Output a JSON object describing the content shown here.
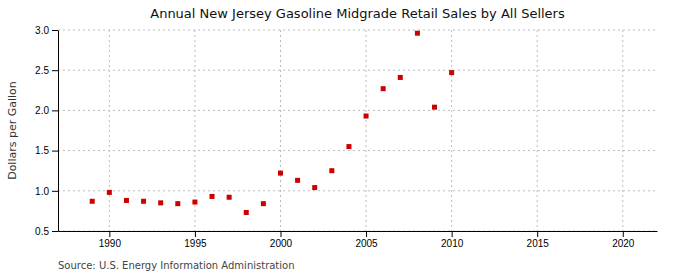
{
  "chart_data": {
    "type": "scatter",
    "title": "Annual New Jersey Gasoline Midgrade Retail Sales by All Sellers",
    "ylabel": "Dollars per Gallon",
    "source": "Source: U.S. Energy Information Administration",
    "x": [
      1989,
      1990,
      1991,
      1992,
      1993,
      1994,
      1995,
      1996,
      1997,
      1998,
      1999,
      2000,
      2001,
      2002,
      2003,
      2004,
      2005,
      2006,
      2007,
      2008,
      2009,
      2010
    ],
    "values": [
      0.87,
      0.98,
      0.88,
      0.87,
      0.85,
      0.84,
      0.86,
      0.93,
      0.92,
      0.73,
      0.84,
      1.22,
      1.13,
      1.04,
      1.25,
      1.55,
      1.93,
      2.27,
      2.41,
      2.96,
      2.04,
      2.47
    ],
    "color": "#cc0000",
    "marker": "square",
    "xlim": [
      1987,
      2022
    ],
    "ylim": [
      0.5,
      3.0
    ],
    "xticks": [
      1990,
      1995,
      2000,
      2005,
      2010,
      2015,
      2020
    ],
    "yticks": [
      0.5,
      {
        "value": 1.0,
        "label": "1.0"
      },
      1.5,
      {
        "value": 2.0,
        "label": "2.0"
      },
      2.5,
      {
        "value": 3.0,
        "label": "3.0"
      }
    ],
    "grid": true
  }
}
